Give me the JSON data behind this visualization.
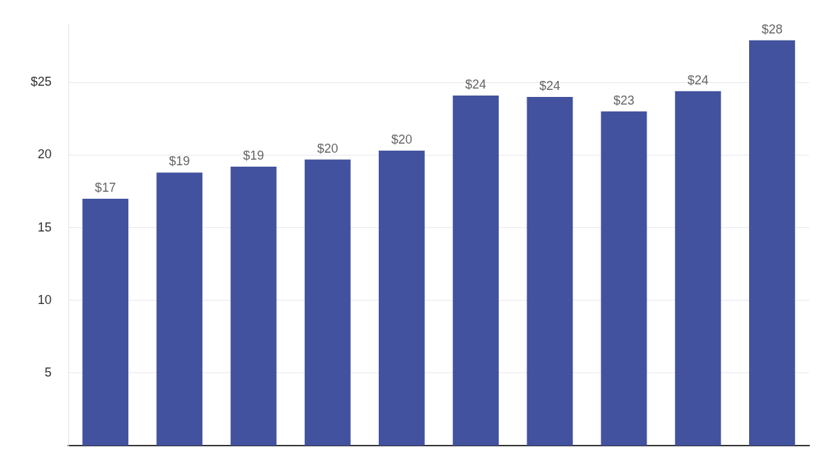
{
  "chart_data": {
    "type": "bar",
    "categories": [
      null,
      null,
      null,
      null,
      null,
      null,
      null,
      null,
      null,
      null
    ],
    "values": [
      17.0,
      18.8,
      19.2,
      19.7,
      20.3,
      24.1,
      24.0,
      23.0,
      24.4,
      27.9
    ],
    "value_labels": [
      "$17",
      "$19",
      "$19",
      "$20",
      "$20",
      "$24",
      "$24",
      "$23",
      "$24",
      "$28"
    ],
    "color": "#42529e",
    "ylim": [
      0,
      29
    ],
    "yticks": [
      5,
      10,
      15,
      20,
      {
        "value": 25,
        "label": "$25"
      }
    ],
    "grid": "y",
    "tick_labels": "y"
  }
}
